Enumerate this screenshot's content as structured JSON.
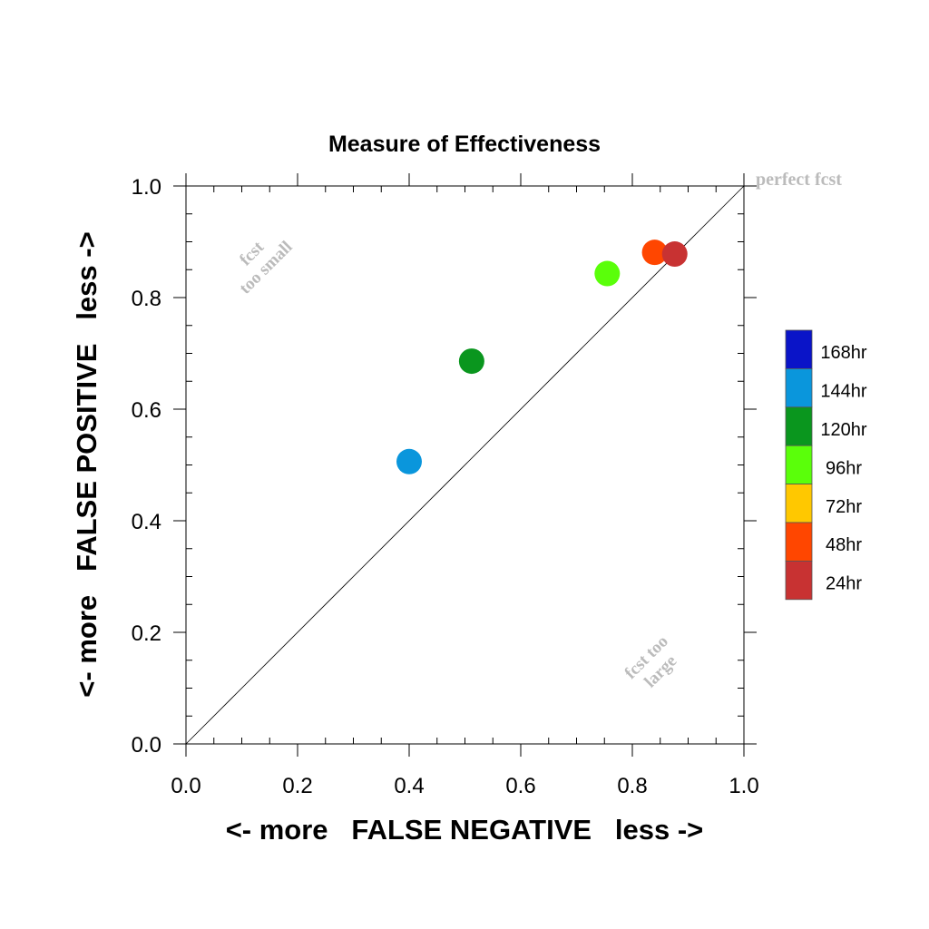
{
  "chart_data": {
    "type": "scatter",
    "title": "Measure of Effectiveness",
    "xlabel": "<- more   FALSE NEGATIVE   less ->",
    "ylabel": "<- more   FALSE POSITIVE   less ->",
    "xlim": [
      0.0,
      1.0
    ],
    "ylim": [
      0.0,
      1.0
    ],
    "x_ticks": [
      "0.0",
      "0.2",
      "0.4",
      "0.6",
      "0.8",
      "1.0"
    ],
    "y_ticks": [
      "0.0",
      "0.2",
      "0.4",
      "0.6",
      "0.8",
      "1.0"
    ],
    "grid": false,
    "diagonal_line": true,
    "annotations": {
      "perfect": "perfect fcst",
      "too_small_1": "fcst",
      "too_small_2": "too small",
      "too_large_1": "fcst too",
      "too_large_2": "large"
    },
    "annotation_color": "#bbbbbb",
    "legend_position": "right",
    "legend": [
      {
        "label": "168hr",
        "color": "#0a14c8"
      },
      {
        "label": "144hr",
        "color": "#0a96dc"
      },
      {
        "label": "120hr",
        "color": "#0a961e"
      },
      {
        "label": "96hr",
        "color": "#5aff0a"
      },
      {
        "label": "72hr",
        "color": "#ffc800"
      },
      {
        "label": "48hr",
        "color": "#ff4600"
      },
      {
        "label": "24hr",
        "color": "#c83232"
      }
    ],
    "points": [
      {
        "label": "144hr",
        "x": 0.4,
        "y": 0.506,
        "color": "#0a96dc"
      },
      {
        "label": "120hr",
        "x": 0.512,
        "y": 0.686,
        "color": "#0a961e"
      },
      {
        "label": "96hr",
        "x": 0.755,
        "y": 0.843,
        "color": "#5aff0a"
      },
      {
        "label": "48hr",
        "x": 0.84,
        "y": 0.881,
        "color": "#ff4600"
      },
      {
        "label": "24hr",
        "x": 0.876,
        "y": 0.878,
        "color": "#c83232"
      }
    ]
  }
}
